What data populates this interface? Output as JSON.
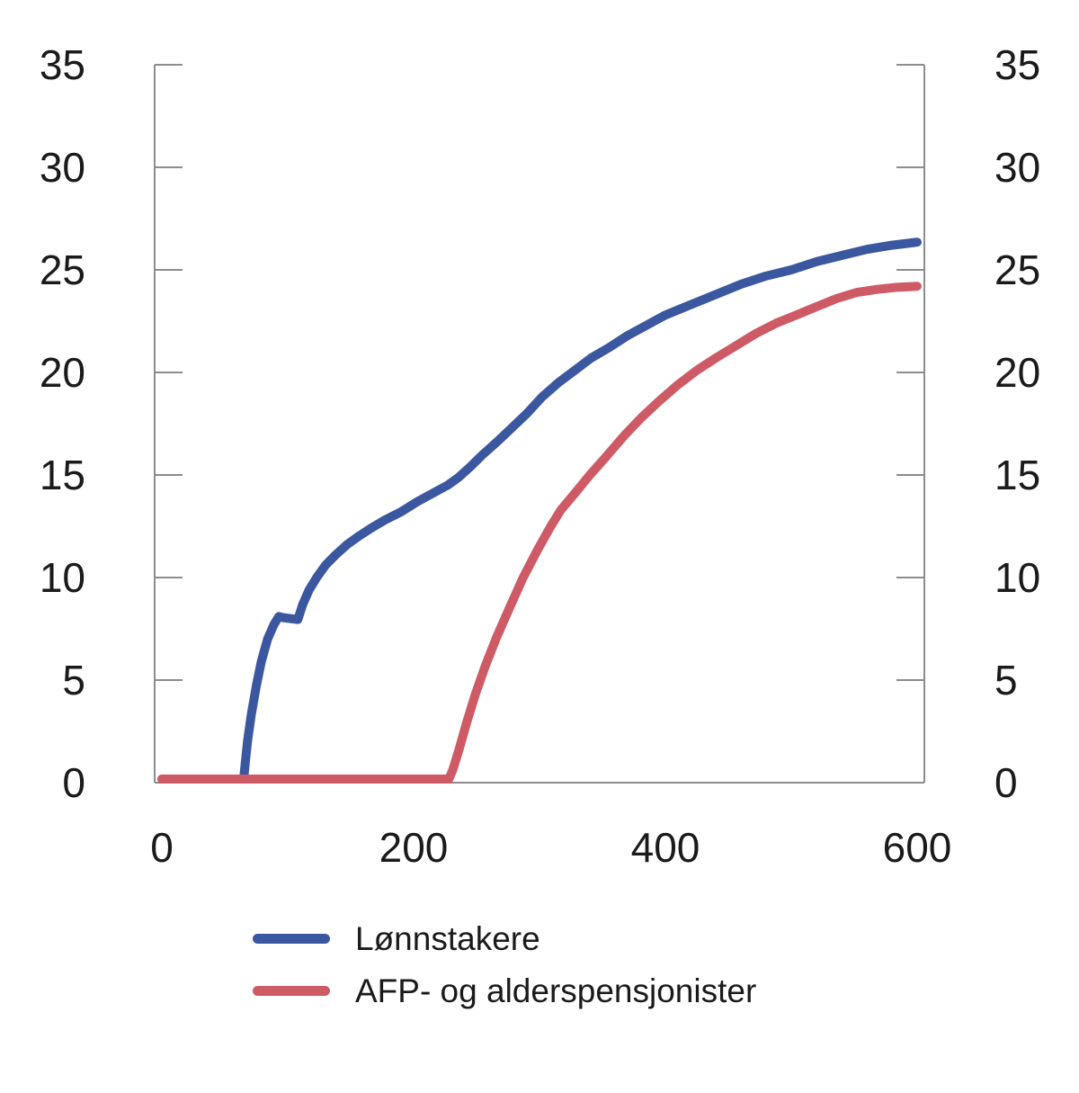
{
  "figure": {
    "background_color": "#ffffff",
    "axis_color": "#8c8c8c",
    "label_color": "#1a1a1a"
  },
  "legend": {
    "items": [
      {
        "label": "Lønnstakere",
        "color": "#3B57A0"
      },
      {
        "label": "AFP- og alderspensjonister",
        "color": "#CE5A66"
      }
    ]
  },
  "chart_data": {
    "type": "line",
    "title": "",
    "xlabel": "",
    "ylabel": "",
    "xlim": [
      0,
      600
    ],
    "ylim": [
      0,
      35
    ],
    "x_ticks": [
      0,
      200,
      400,
      600
    ],
    "y_ticks": [
      0,
      5,
      10,
      15,
      20,
      25,
      30,
      35
    ],
    "y_axis_mirrored_right": true,
    "grid": false,
    "legend_position": "bottom-left",
    "series": [
      {
        "name": "Lønnstakere",
        "color": "#3B57A0",
        "points": [
          [
            0,
            0
          ],
          [
            40,
            0
          ],
          [
            65,
            0
          ],
          [
            66,
            0.8
          ],
          [
            68,
            2.0
          ],
          [
            71,
            3.3
          ],
          [
            75,
            4.7
          ],
          [
            79,
            5.9
          ],
          [
            84,
            7.0
          ],
          [
            89,
            7.7
          ],
          [
            93,
            8.1
          ],
          [
            96,
            8.05
          ],
          [
            108,
            7.95
          ],
          [
            112,
            8.7
          ],
          [
            117,
            9.4
          ],
          [
            123,
            10.0
          ],
          [
            130,
            10.6
          ],
          [
            138,
            11.1
          ],
          [
            147,
            11.6
          ],
          [
            156,
            12.0
          ],
          [
            166,
            12.4
          ],
          [
            177,
            12.8
          ],
          [
            190,
            13.2
          ],
          [
            203,
            13.7
          ],
          [
            215,
            14.1
          ],
          [
            227,
            14.5
          ],
          [
            236,
            14.9
          ],
          [
            245,
            15.4
          ],
          [
            255,
            16.0
          ],
          [
            266,
            16.6
          ],
          [
            278,
            17.3
          ],
          [
            290,
            18.0
          ],
          [
            302,
            18.8
          ],
          [
            315,
            19.5
          ],
          [
            328,
            20.1
          ],
          [
            341,
            20.7
          ],
          [
            355,
            21.2
          ],
          [
            370,
            21.8
          ],
          [
            385,
            22.3
          ],
          [
            400,
            22.8
          ],
          [
            420,
            23.3
          ],
          [
            440,
            23.8
          ],
          [
            460,
            24.3
          ],
          [
            480,
            24.7
          ],
          [
            500,
            25.0
          ],
          [
            520,
            25.4
          ],
          [
            540,
            25.7
          ],
          [
            560,
            26.0
          ],
          [
            580,
            26.2
          ],
          [
            600,
            26.35
          ]
        ]
      },
      {
        "name": "AFP- og alderspensjonister",
        "color": "#CE5A66",
        "points": [
          [
            0,
            0
          ],
          [
            100,
            0
          ],
          [
            200,
            0
          ],
          [
            228,
            0
          ],
          [
            231,
            0.6
          ],
          [
            236,
            1.6
          ],
          [
            242,
            2.9
          ],
          [
            249,
            4.3
          ],
          [
            257,
            5.7
          ],
          [
            266,
            7.1
          ],
          [
            276,
            8.5
          ],
          [
            287,
            10.0
          ],
          [
            298,
            11.3
          ],
          [
            308,
            12.4
          ],
          [
            317,
            13.3
          ],
          [
            328,
            14.1
          ],
          [
            340,
            15.0
          ],
          [
            353,
            15.9
          ],
          [
            367,
            16.9
          ],
          [
            381,
            17.8
          ],
          [
            395,
            18.6
          ],
          [
            410,
            19.4
          ],
          [
            425,
            20.1
          ],
          [
            440,
            20.7
          ],
          [
            456,
            21.3
          ],
          [
            472,
            21.9
          ],
          [
            488,
            22.4
          ],
          [
            504,
            22.8
          ],
          [
            520,
            23.2
          ],
          [
            536,
            23.6
          ],
          [
            552,
            23.9
          ],
          [
            568,
            24.05
          ],
          [
            584,
            24.15
          ],
          [
            600,
            24.2
          ]
        ]
      }
    ]
  }
}
